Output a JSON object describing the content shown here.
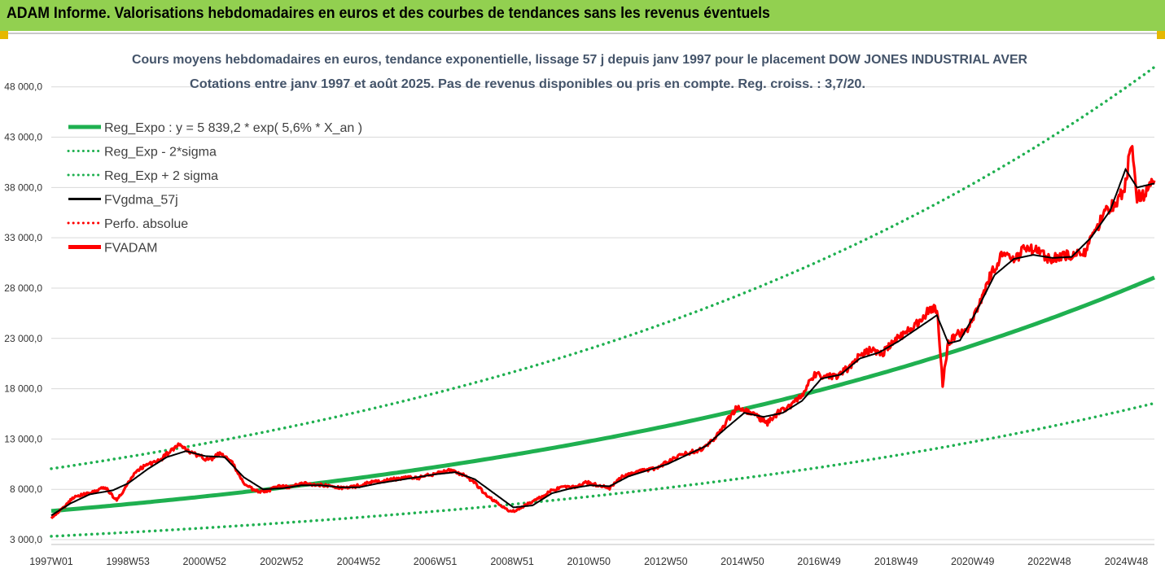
{
  "banner": {
    "title": "ADAM Informe. Valorisations hebdomadaires en euros et des courbes de tendances sans les revenus éventuels",
    "color": "#92d050"
  },
  "chart_data": {
    "type": "line",
    "title_line1": "Cours moyens hebdomadaires en euros, tendance exponentielle, lissage 57 j depuis janv 1997 pour le placement DOW JONES INDUSTRIAL AVER",
    "title_line2": "Cotations entre janv 1997 et août 2025.  Pas de revenus disponibles ou pris en compte. Reg. croiss. : 3,7/20.",
    "xlabel": "",
    "ylabel": "",
    "ylim": [
      3000,
      50000
    ],
    "yticks": [
      "3 000,0",
      "8 000,0",
      "13 000,0",
      "18 000,0",
      "23 000,0",
      "28 000,0",
      "33 000,0",
      "38 000,0",
      "43 000,0",
      "48 000,0"
    ],
    "ytick_values": [
      3000,
      8000,
      13000,
      18000,
      23000,
      28000,
      33000,
      38000,
      43000,
      48000
    ],
    "xticks": [
      "1997W01",
      "1998W53",
      "2000W52",
      "2002W52",
      "2004W52",
      "2006W51",
      "2008W51",
      "2010W50",
      "2012W50",
      "2014W50",
      "2016W49",
      "2018W49",
      "2020W49",
      "2022W48",
      "2024W48"
    ],
    "xtick_years": [
      1997.0,
      1998.99,
      2000.98,
      2002.98,
      2004.98,
      2006.97,
      2008.97,
      2010.96,
      2012.96,
      2014.95,
      2016.94,
      2018.94,
      2020.93,
      2022.92,
      2024.92
    ],
    "x_range": [
      1997.0,
      2025.65
    ],
    "grid": "horizontal",
    "legend_position": "top-left",
    "legend": [
      {
        "label": "Reg_Expo : y = 5 839,2 * exp( 5,6% *  X_an )",
        "color": "#1fb050",
        "style": "solid-thick"
      },
      {
        "label": "Reg_Exp - 2*sigma",
        "color": "#1fb050",
        "style": "dotted"
      },
      {
        "label": "Reg_Exp + 2 sigma",
        "color": "#1fb050",
        "style": "dotted"
      },
      {
        "label": "FVgdma_57j",
        "color": "#000000",
        "style": "solid"
      },
      {
        "label": "Perfo. absolue",
        "color": "#ff0000",
        "style": "dotted"
      },
      {
        "label": "FVADAM",
        "color": "#ff0000",
        "style": "solid-thick"
      }
    ],
    "regression": {
      "a": 5839.2,
      "rate": 0.056,
      "start_year": 1997.0
    },
    "band_factors": {
      "upper": 1.72,
      "lower": 0.57
    },
    "upper_band_cap": 50000,
    "fvadam_series": {
      "x": [
        1997.0,
        1997.3,
        1997.6,
        1998.0,
        1998.4,
        1998.7,
        1998.9,
        1999.2,
        1999.5,
        1999.8,
        2000.0,
        2000.3,
        2000.6,
        2000.9,
        2001.1,
        2001.4,
        2001.7,
        2002.0,
        2002.3,
        2002.6,
        2002.9,
        2003.2,
        2003.5,
        2003.8,
        2004.1,
        2004.4,
        2004.7,
        2005.0,
        2005.3,
        2005.6,
        2005.9,
        2006.2,
        2006.5,
        2006.8,
        2007.1,
        2007.4,
        2007.7,
        2008.0,
        2008.3,
        2008.6,
        2008.9,
        2009.1,
        2009.4,
        2009.7,
        2010.0,
        2010.3,
        2010.6,
        2010.9,
        2011.2,
        2011.5,
        2011.8,
        2012.1,
        2012.4,
        2012.7,
        2013.0,
        2013.3,
        2013.6,
        2013.9,
        2014.2,
        2014.5,
        2014.8,
        2015.0,
        2015.3,
        2015.6,
        2015.9,
        2016.2,
        2016.5,
        2016.8,
        2017.1,
        2017.4,
        2017.7,
        2018.0,
        2018.3,
        2018.6,
        2018.9,
        2019.2,
        2019.5,
        2019.8,
        2020.0,
        2020.15,
        2020.3,
        2020.5,
        2020.8,
        2021.1,
        2021.4,
        2021.7,
        2022.0,
        2022.3,
        2022.6,
        2022.9,
        2023.2,
        2023.5,
        2023.8,
        2024.1,
        2024.4,
        2024.7,
        2024.9,
        2025.05,
        2025.2,
        2025.4,
        2025.65
      ],
      "y": [
        5200,
        6100,
        7300,
        7600,
        8200,
        6900,
        8000,
        9800,
        10500,
        10800,
        11500,
        12400,
        11700,
        11200,
        10900,
        11600,
        10600,
        8600,
        7800,
        7800,
        8300,
        8200,
        8600,
        8500,
        8400,
        8200,
        8100,
        8400,
        8700,
        8800,
        9000,
        9200,
        9100,
        9400,
        9700,
        9900,
        9400,
        8600,
        7400,
        6600,
        5800,
        5900,
        6600,
        7200,
        7900,
        8200,
        8200,
        8700,
        8400,
        8100,
        9200,
        9600,
        9900,
        10100,
        10700,
        11300,
        11700,
        12000,
        12900,
        14500,
        16100,
        15900,
        15300,
        14600,
        15700,
        16300,
        17400,
        19300,
        19300,
        19100,
        20100,
        21300,
        21900,
        21600,
        22800,
        23600,
        24500,
        25800,
        26000,
        18500,
        22600,
        23400,
        24000,
        26500,
        29300,
        31300,
        30600,
        32100,
        31600,
        30900,
        31100,
        31300,
        31200,
        33500,
        35800,
        36600,
        38300,
        42500,
        37100,
        37300,
        38700
      ]
    },
    "fvgdma_series": {
      "x": [
        1997.0,
        1997.5,
        1998.0,
        1998.6,
        1999.0,
        1999.5,
        2000.0,
        2000.5,
        2001.0,
        2001.5,
        2002.0,
        2002.5,
        2003.0,
        2003.5,
        2004.0,
        2004.5,
        2005.0,
        2005.5,
        2006.0,
        2006.5,
        2007.0,
        2007.5,
        2008.0,
        2008.5,
        2009.0,
        2009.5,
        2010.0,
        2010.5,
        2011.0,
        2011.5,
        2012.0,
        2012.5,
        2013.0,
        2013.5,
        2014.0,
        2014.5,
        2015.0,
        2015.5,
        2016.0,
        2016.5,
        2017.0,
        2017.5,
        2018.0,
        2018.5,
        2019.0,
        2019.5,
        2020.0,
        2020.3,
        2020.6,
        2021.0,
        2021.5,
        2022.0,
        2022.5,
        2023.0,
        2023.5,
        2024.0,
        2024.5,
        2024.9,
        2025.2,
        2025.65
      ],
      "y": [
        5400,
        6600,
        7500,
        7900,
        8600,
        10000,
        11200,
        11800,
        11300,
        11200,
        9200,
        8000,
        8100,
        8400,
        8400,
        8200,
        8200,
        8600,
        8900,
        9200,
        9500,
        9700,
        9000,
        7600,
        6200,
        6400,
        7600,
        8100,
        8400,
        8300,
        9300,
        9900,
        10500,
        11400,
        12300,
        14000,
        15600,
        15200,
        15600,
        16800,
        19000,
        19400,
        21000,
        21600,
        22700,
        24000,
        25300,
        22500,
        22800,
        25500,
        29300,
        30900,
        31300,
        31000,
        31100,
        33000,
        35700,
        39800,
        38000,
        38400
      ]
    }
  }
}
